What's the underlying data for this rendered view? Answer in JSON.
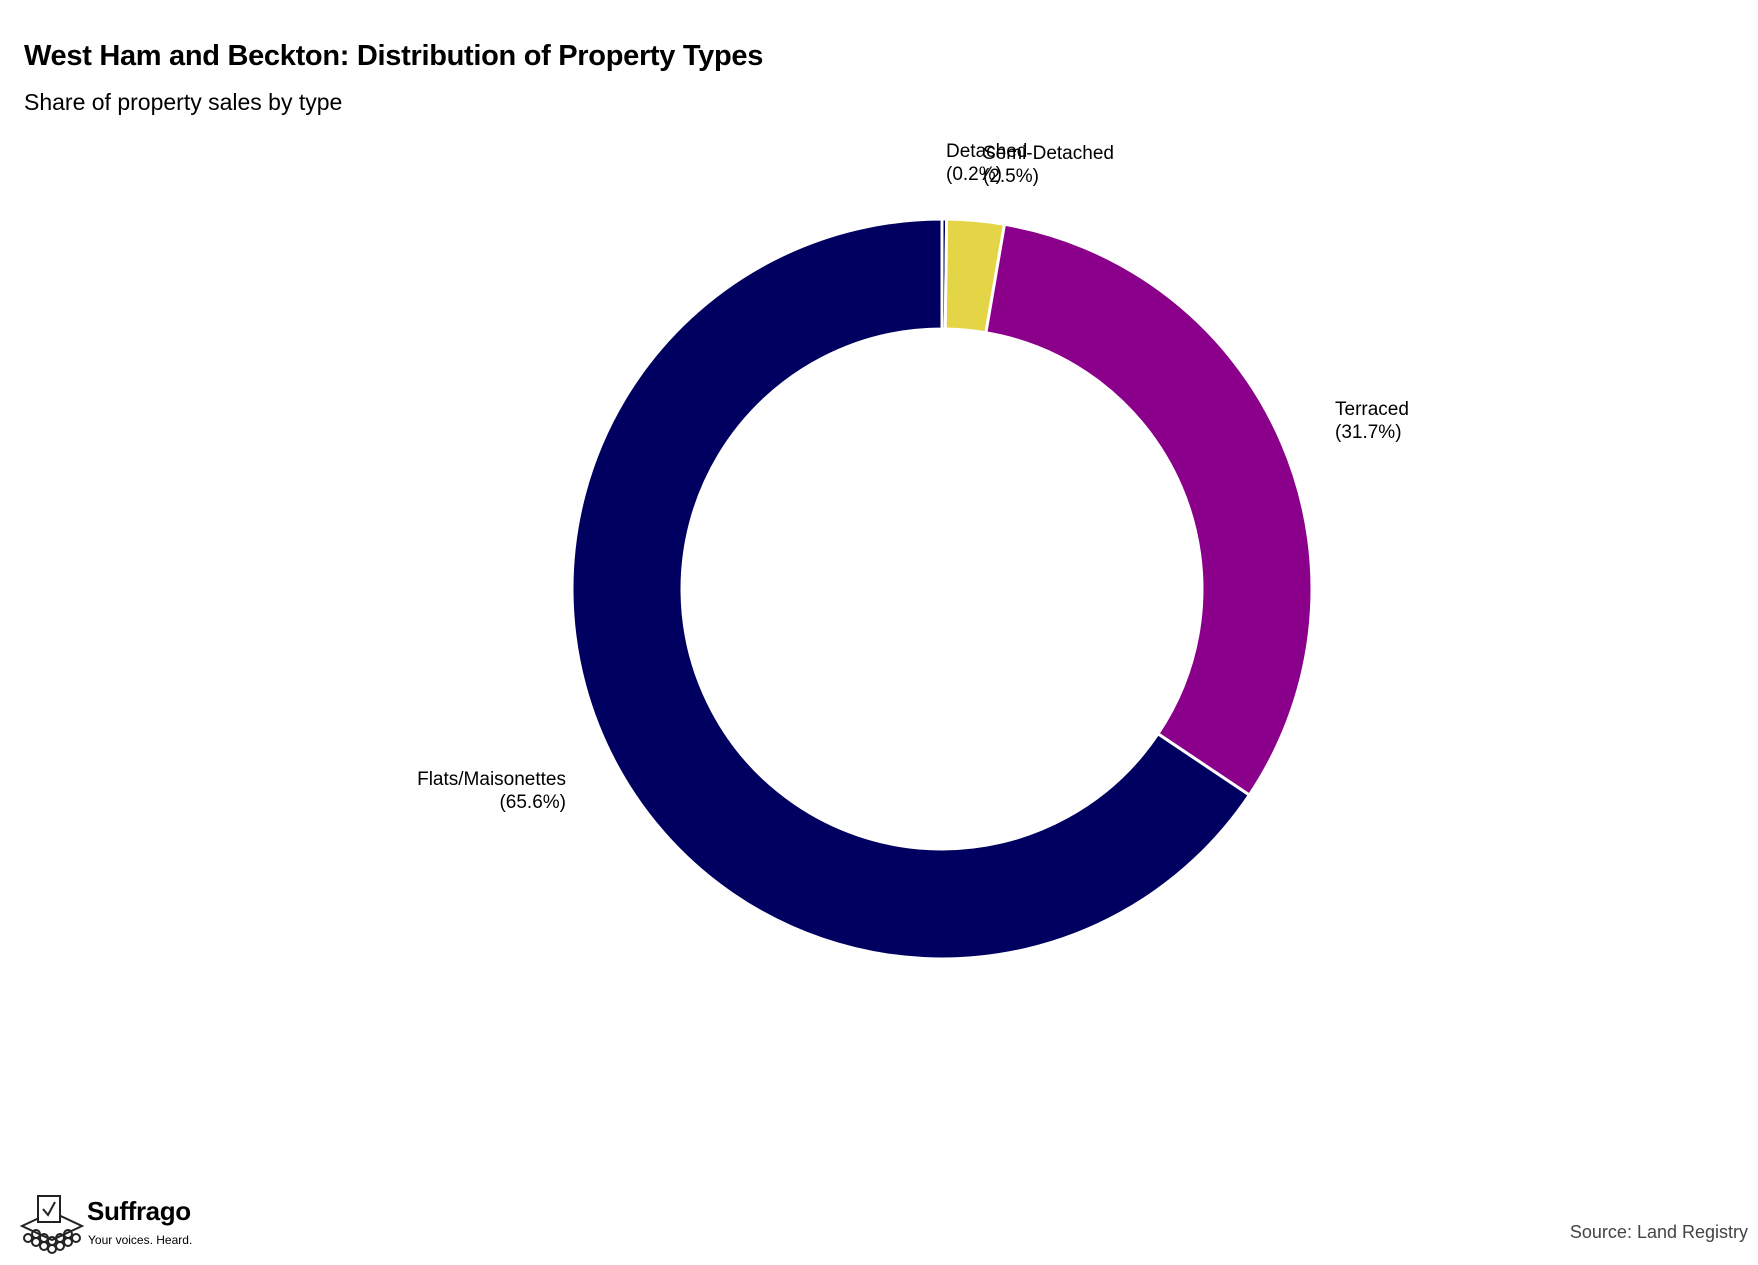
{
  "header": {
    "title": "West Ham and Beckton: Distribution of Property Types",
    "subtitle": "Share of property sales by type"
  },
  "footer": {
    "brand": "Suffrago",
    "tagline": "Your voices. Heard.",
    "source": "Source: Land Registry"
  },
  "chart_data": {
    "type": "pie",
    "variant": "donut",
    "title": "West Ham and Beckton: Distribution of Property Types",
    "subtitle": "Share of property sales by type",
    "categories": [
      "Detached",
      "Semi-Detached",
      "Terraced",
      "Flats/Maisonettes"
    ],
    "values": [
      0.2,
      2.5,
      31.7,
      65.6
    ],
    "value_labels": [
      "(0.2%)",
      "(2.5%)",
      "(31.7%)",
      "(65.6%)"
    ],
    "colors": [
      "#000060",
      "#e3d545",
      "#8b008b",
      "#000060"
    ],
    "start_angle": "12 o'clock",
    "direction": "clockwise",
    "legend": "none"
  }
}
